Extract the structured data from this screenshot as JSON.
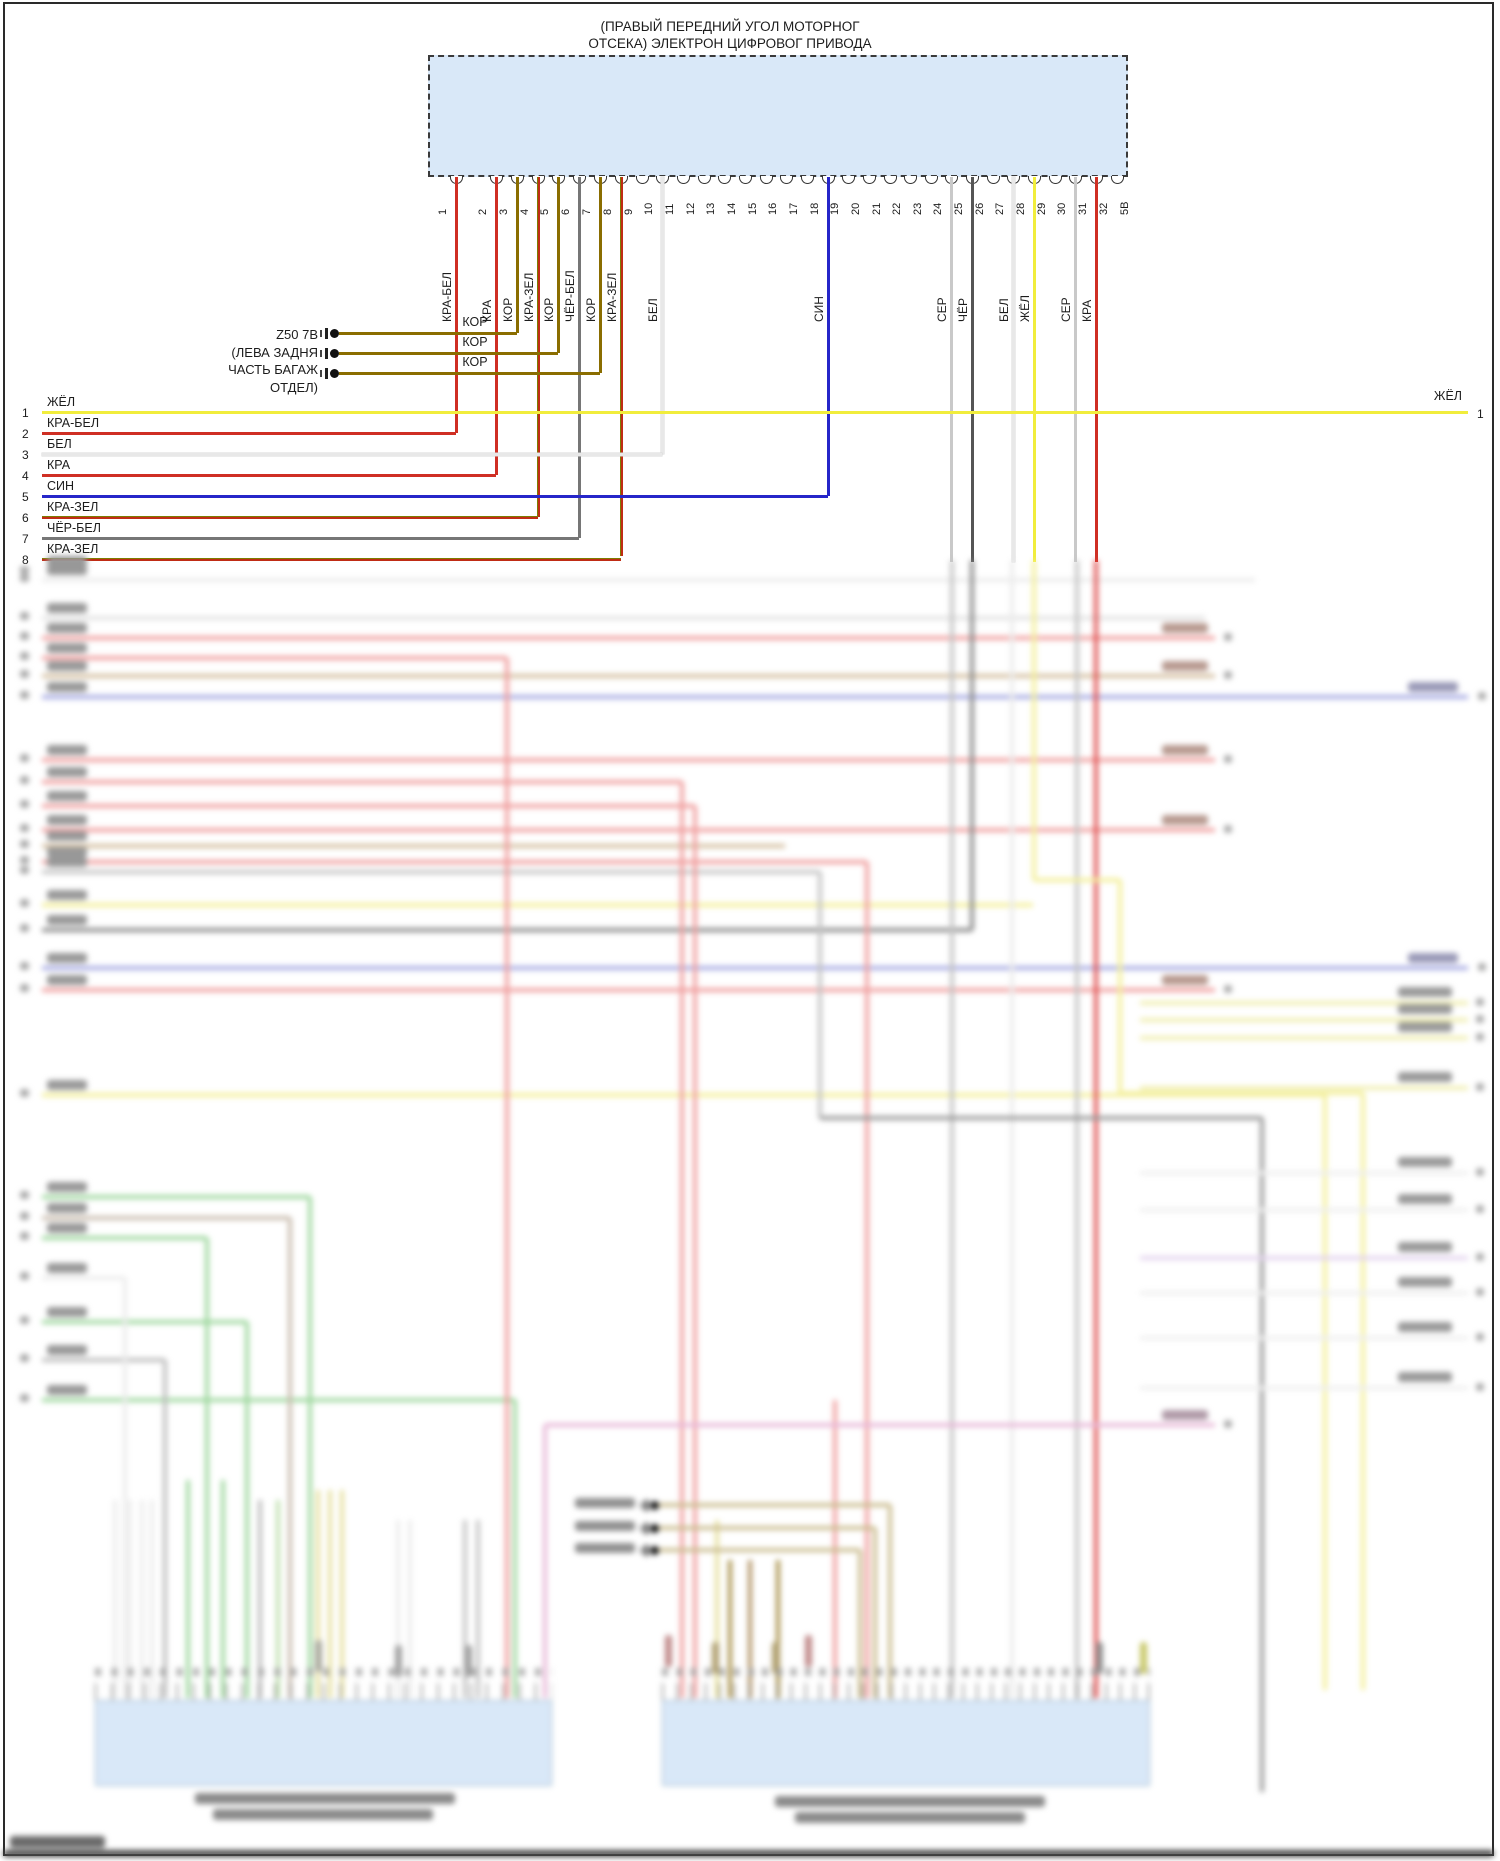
{
  "ecu": {
    "title_line1": "(ПРАВЫЙ ПЕРЕДНИЙ УГОЛ МОТОРНОГ",
    "title_line2": "ОТСЕКА) ЭЛЕКТРОН ЦИФРОВОГ ПРИВОДА"
  },
  "pins": [
    {
      "n": "1",
      "label": "КРА-БЕЛ"
    },
    {
      "n": "2",
      "label": "КРА"
    },
    {
      "n": "3",
      "label": "КОР"
    },
    {
      "n": "4",
      "label": "КРА-ЗЕЛ"
    },
    {
      "n": "5",
      "label": "КОР"
    },
    {
      "n": "6",
      "label": "ЧЁР-БЕЛ"
    },
    {
      "n": "7",
      "label": "КОР"
    },
    {
      "n": "8",
      "label": "КРА-ЗЕЛ"
    },
    {
      "n": "9",
      "label": ""
    },
    {
      "n": "10",
      "label": "БЕЛ"
    },
    {
      "n": "11",
      "label": ""
    },
    {
      "n": "12",
      "label": ""
    },
    {
      "n": "13",
      "label": ""
    },
    {
      "n": "14",
      "label": ""
    },
    {
      "n": "15",
      "label": ""
    },
    {
      "n": "16",
      "label": ""
    },
    {
      "n": "17",
      "label": ""
    },
    {
      "n": "18",
      "label": "СИН"
    },
    {
      "n": "19",
      "label": ""
    },
    {
      "n": "20",
      "label": ""
    },
    {
      "n": "21",
      "label": ""
    },
    {
      "n": "22",
      "label": ""
    },
    {
      "n": "23",
      "label": ""
    },
    {
      "n": "24",
      "label": "СЕР"
    },
    {
      "n": "25",
      "label": "ЧЁР"
    },
    {
      "n": "26",
      "label": ""
    },
    {
      "n": "27",
      "label": "БЕЛ"
    },
    {
      "n": "28",
      "label": "ЖЁЛ"
    },
    {
      "n": "29",
      "label": ""
    },
    {
      "n": "30",
      "label": "СЕР"
    },
    {
      "n": "31",
      "label": "КРА"
    },
    {
      "n": "32",
      "label": ""
    },
    {
      "n": "5В",
      "label": ""
    }
  ],
  "left_rows": [
    {
      "n": "1",
      "label": "ЖЁЛ"
    },
    {
      "n": "2",
      "label": "КРА-БЕЛ"
    },
    {
      "n": "3",
      "label": "БЕЛ"
    },
    {
      "n": "4",
      "label": "КРА"
    },
    {
      "n": "5",
      "label": "СИН"
    },
    {
      "n": "6",
      "label": "КРА-ЗЕЛ"
    },
    {
      "n": "7",
      "label": "ЧЁР-БЕЛ"
    },
    {
      "n": "8",
      "label": "КРА-ЗЕЛ"
    }
  ],
  "stub_group": {
    "text_lines": [
      "Z50 7В",
      "(ЛЕВА ЗАДНЯ",
      "ЧАСТЬ БАГАЖ",
      "ОТДЕЛ)"
    ],
    "wire_labels": [
      "КОР",
      "КОР",
      "КОР"
    ]
  },
  "right_end": {
    "label": "ЖЁЛ",
    "n": "1"
  },
  "palette": {
    "box_fill": "#d9e8f8",
    "red": "#cf2f24",
    "red_green": "#c02c15",
    "brown_kor": "#8a6d00",
    "gray_black_white": "#767676",
    "white_wire": "#e8e8e8",
    "blue_sin": "#2626c9",
    "yellow_zhel": "#f1ed3c",
    "gray_ser": "#c9c9c9",
    "black_chyor": "#555555"
  }
}
